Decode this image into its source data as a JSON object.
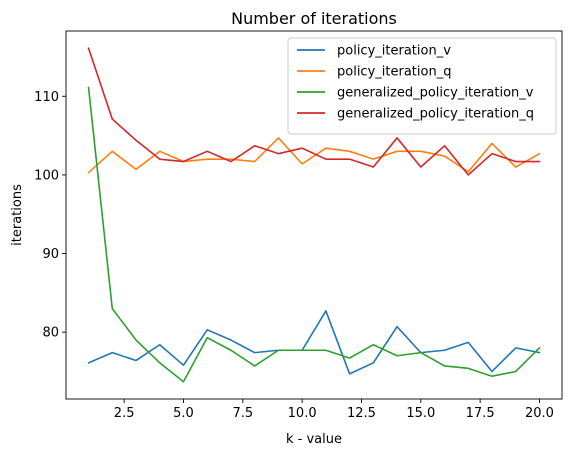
{
  "chart_data": {
    "type": "line",
    "title": "Number of iterations",
    "xlabel": "k - value",
    "ylabel": "iterations",
    "xlim": [
      0.05,
      20.95
    ],
    "ylim": [
      71.5,
      118.3
    ],
    "xticks": [
      2.5,
      5.0,
      7.5,
      10.0,
      12.5,
      15.0,
      17.5,
      20.0
    ],
    "xtick_labels": [
      "2.5",
      "5.0",
      "7.5",
      "10.0",
      "12.5",
      "15.0",
      "17.5",
      "20.0"
    ],
    "yticks": [
      80,
      90,
      100,
      110
    ],
    "ytick_labels": [
      "80",
      "90",
      "100",
      "110"
    ],
    "grid": false,
    "legend_position": "top-right",
    "x": [
      1,
      2,
      3,
      4,
      5,
      6,
      7,
      8,
      9,
      10,
      11,
      12,
      13,
      14,
      15,
      16,
      17,
      18,
      19,
      20
    ],
    "series": [
      {
        "name": "policy_iteration_v",
        "color": "#1f77b4",
        "values": [
          76.1,
          77.4,
          76.4,
          78.4,
          75.8,
          80.3,
          79.0,
          77.4,
          77.7,
          77.7,
          82.7,
          74.7,
          76.1,
          80.7,
          77.4,
          77.7,
          78.7,
          75.0,
          78.0,
          77.4
        ]
      },
      {
        "name": "policy_iteration_q",
        "color": "#ff7f0e",
        "values": [
          100.3,
          103.0,
          100.7,
          103.0,
          101.7,
          102.0,
          102.0,
          101.7,
          104.7,
          101.4,
          103.4,
          103.0,
          102.0,
          103.0,
          103.0,
          102.4,
          100.4,
          104.0,
          101.0,
          102.7
        ]
      },
      {
        "name": "generalized_policy_iteration_v",
        "color": "#2ca02c",
        "values": [
          111.1,
          83.0,
          79.0,
          76.1,
          73.7,
          79.3,
          77.7,
          75.7,
          77.7,
          77.7,
          77.7,
          76.7,
          78.4,
          77.0,
          77.4,
          75.7,
          75.4,
          74.4,
          75.0,
          78.0
        ]
      },
      {
        "name": "generalized_policy_iteration_q",
        "color": "#d62728",
        "values": [
          116.1,
          107.1,
          104.4,
          102.0,
          101.7,
          103.0,
          101.7,
          103.7,
          102.7,
          103.4,
          102.0,
          102.0,
          101.0,
          104.7,
          101.0,
          103.7,
          100.0,
          102.7,
          101.7,
          101.7
        ]
      }
    ]
  }
}
